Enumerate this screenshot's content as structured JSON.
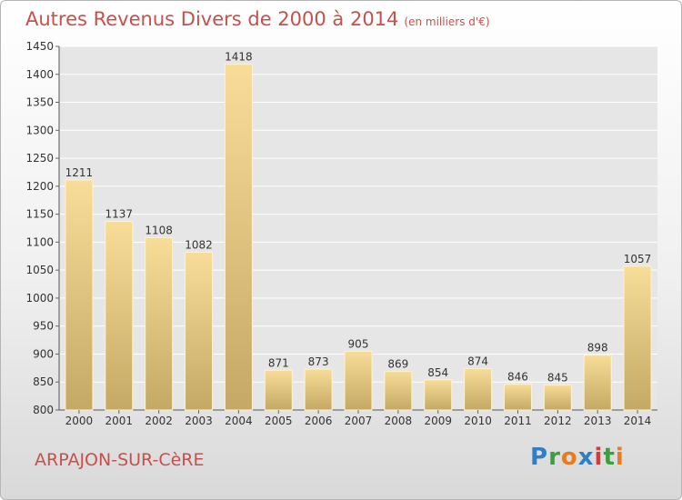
{
  "header": {
    "title": "Autres Revenus Divers de 2000 à 2014",
    "unit": "(en milliers d'€)"
  },
  "footer": {
    "city": "ARPAJON-SUR-CèRE",
    "logo": "Proxiti"
  },
  "colors": {
    "title": "#c8504a",
    "bar_light": "#f7dd98",
    "bar_dark": "#c4a965",
    "grid": "#ffffff"
  },
  "chart_data": {
    "type": "bar",
    "title": "Autres Revenus Divers de 2000 à 2014",
    "subtitle": "(en milliers d'€)",
    "categories": [
      "2000",
      "2001",
      "2002",
      "2003",
      "2004",
      "2005",
      "2006",
      "2007",
      "2008",
      "2009",
      "2010",
      "2011",
      "2012",
      "2013",
      "2014"
    ],
    "values": [
      1211,
      1137,
      1108,
      1082,
      1418,
      871,
      873,
      905,
      869,
      854,
      874,
      846,
      845,
      898,
      1057
    ],
    "ylim": [
      800,
      1450
    ],
    "yticks": [
      800,
      850,
      900,
      950,
      1000,
      1050,
      1100,
      1150,
      1200,
      1250,
      1300,
      1350,
      1400,
      1450
    ],
    "grid": true,
    "xlabel": "",
    "ylabel": ""
  }
}
